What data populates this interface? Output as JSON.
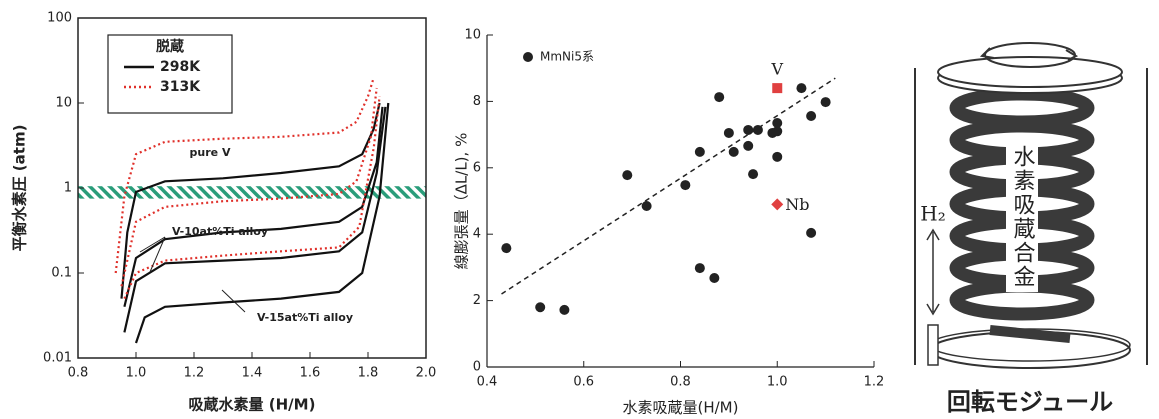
{
  "chart_data": [
    {
      "type": "line",
      "x_label": "吸蔵水素量 (H/M)",
      "y_label": "平衡水素圧 (atm)",
      "xlim": [
        0.8,
        2.0
      ],
      "xticks": [
        0.8,
        {
          "value": 1,
          "label": "1.0"
        },
        1.2,
        1.4,
        1.6,
        1.8,
        {
          "value": 2,
          "label": "2.0"
        }
      ],
      "ylim": [
        0.01,
        100
      ],
      "yticks": [
        0.01,
        0.1,
        1,
        10,
        100
      ],
      "y_log": true,
      "band_ylim": [
        0.75,
        1.05
      ],
      "band_color": "#2a9d7a",
      "legend_title": "脱蔵",
      "legend": "upper left",
      "annotations": [
        "pure V",
        "V-10at%Ti alloy",
        "V-15at%Ti alloy"
      ],
      "series": [
        {
          "name": "298K",
          "color": "#111111",
          "dashed": false,
          "lines": [
            {
              "x": [
                0.95,
                0.97,
                1.0,
                1.1,
                1.3,
                1.5,
                1.7,
                1.78,
                1.82,
                1.84
              ],
              "values": [
                0.05,
                0.3,
                0.9,
                1.2,
                1.3,
                1.5,
                1.8,
                2.5,
                5,
                10
              ]
            },
            {
              "x": [
                0.96,
                1.0,
                1.1,
                1.3,
                1.5,
                1.7,
                1.78,
                1.83,
                1.85
              ],
              "values": [
                0.04,
                0.15,
                0.25,
                0.3,
                0.33,
                0.4,
                0.6,
                2,
                9
              ]
            },
            {
              "x": [
                0.96,
                1.0,
                1.1,
                1.3,
                1.5,
                1.7,
                1.78,
                1.83,
                1.86
              ],
              "values": [
                0.02,
                0.08,
                0.13,
                0.14,
                0.15,
                0.18,
                0.3,
                1.5,
                9
              ]
            },
            {
              "x": [
                1.0,
                1.03,
                1.1,
                1.3,
                1.5,
                1.7,
                1.78,
                1.84,
                1.87
              ],
              "values": [
                0.015,
                0.03,
                0.04,
                0.045,
                0.05,
                0.06,
                0.1,
                0.8,
                10
              ]
            }
          ]
        },
        {
          "name": "313K",
          "color": "#e0302a",
          "dashed": true,
          "lines": [
            {
              "x": [
                0.93,
                0.96,
                1.0,
                1.1,
                1.3,
                1.5,
                1.7,
                1.76,
                1.8,
                1.82
              ],
              "values": [
                0.1,
                0.8,
                2.5,
                3.5,
                3.8,
                4,
                4.5,
                6,
                12,
                20
              ]
            },
            {
              "x": [
                0.95,
                1.0,
                1.1,
                1.3,
                1.5,
                1.7,
                1.76,
                1.81,
                1.83
              ],
              "values": [
                0.07,
                0.4,
                0.6,
                0.7,
                0.75,
                0.85,
                1.2,
                4,
                15
              ]
            },
            {
              "x": [
                0.96,
                1.0,
                1.1,
                1.3,
                1.5,
                1.7,
                1.77,
                1.82,
                1.84
              ],
              "values": [
                0.05,
                0.1,
                0.14,
                0.16,
                0.18,
                0.2,
                0.35,
                3,
                12
              ]
            }
          ]
        }
      ]
    },
    {
      "type": "scatter",
      "x_label": "水素吸蔵量(H/M)",
      "y_label": "線膨張量（ΔL/L), %",
      "xlim": [
        0.4,
        1.2
      ],
      "xticks": [
        0.4,
        0.6,
        0.8,
        {
          "value": 1,
          "label": "1.0"
        },
        1.2
      ],
      "ylim": [
        0,
        10
      ],
      "yticks": [
        0,
        2,
        4,
        6,
        8,
        10
      ],
      "legend": "upper left",
      "series": [
        {
          "name": "MmNi5系",
          "color": "#222222",
          "x": [
            0.44,
            0.51,
            0.56,
            0.69,
            0.73,
            0.81,
            0.84,
            0.84,
            0.87,
            0.88,
            0.9,
            0.91,
            0.94,
            0.94,
            0.96,
            0.95,
            0.99,
            1.0,
            1.0,
            1.0,
            1.05,
            1.07,
            1.07,
            1.1
          ],
          "values": [
            3.58,
            1.8,
            1.72,
            5.78,
            4.85,
            5.48,
            6.48,
            2.98,
            2.68,
            8.13,
            7.05,
            6.48,
            7.14,
            6.66,
            7.14,
            5.81,
            7.05,
            6.33,
            7.35,
            7.1,
            8.4,
            7.56,
            4.04,
            7.98
          ]
        }
      ],
      "highlights": [
        {
          "name": "V",
          "x": 1.0,
          "value": 8.4,
          "color": "#e04040",
          "marker": "square"
        },
        {
          "name": "Nb",
          "x": 1.0,
          "value": 4.9,
          "color": "#e04040",
          "marker": "diamond"
        }
      ],
      "trendline": {
        "x": [
          0.43,
          1.12
        ],
        "values": [
          2.2,
          8.7
        ]
      }
    }
  ],
  "diagram": {
    "alloy_label": "水素吸蔵合金",
    "gas_label": "H₂",
    "caption": "回転モジュール"
  }
}
